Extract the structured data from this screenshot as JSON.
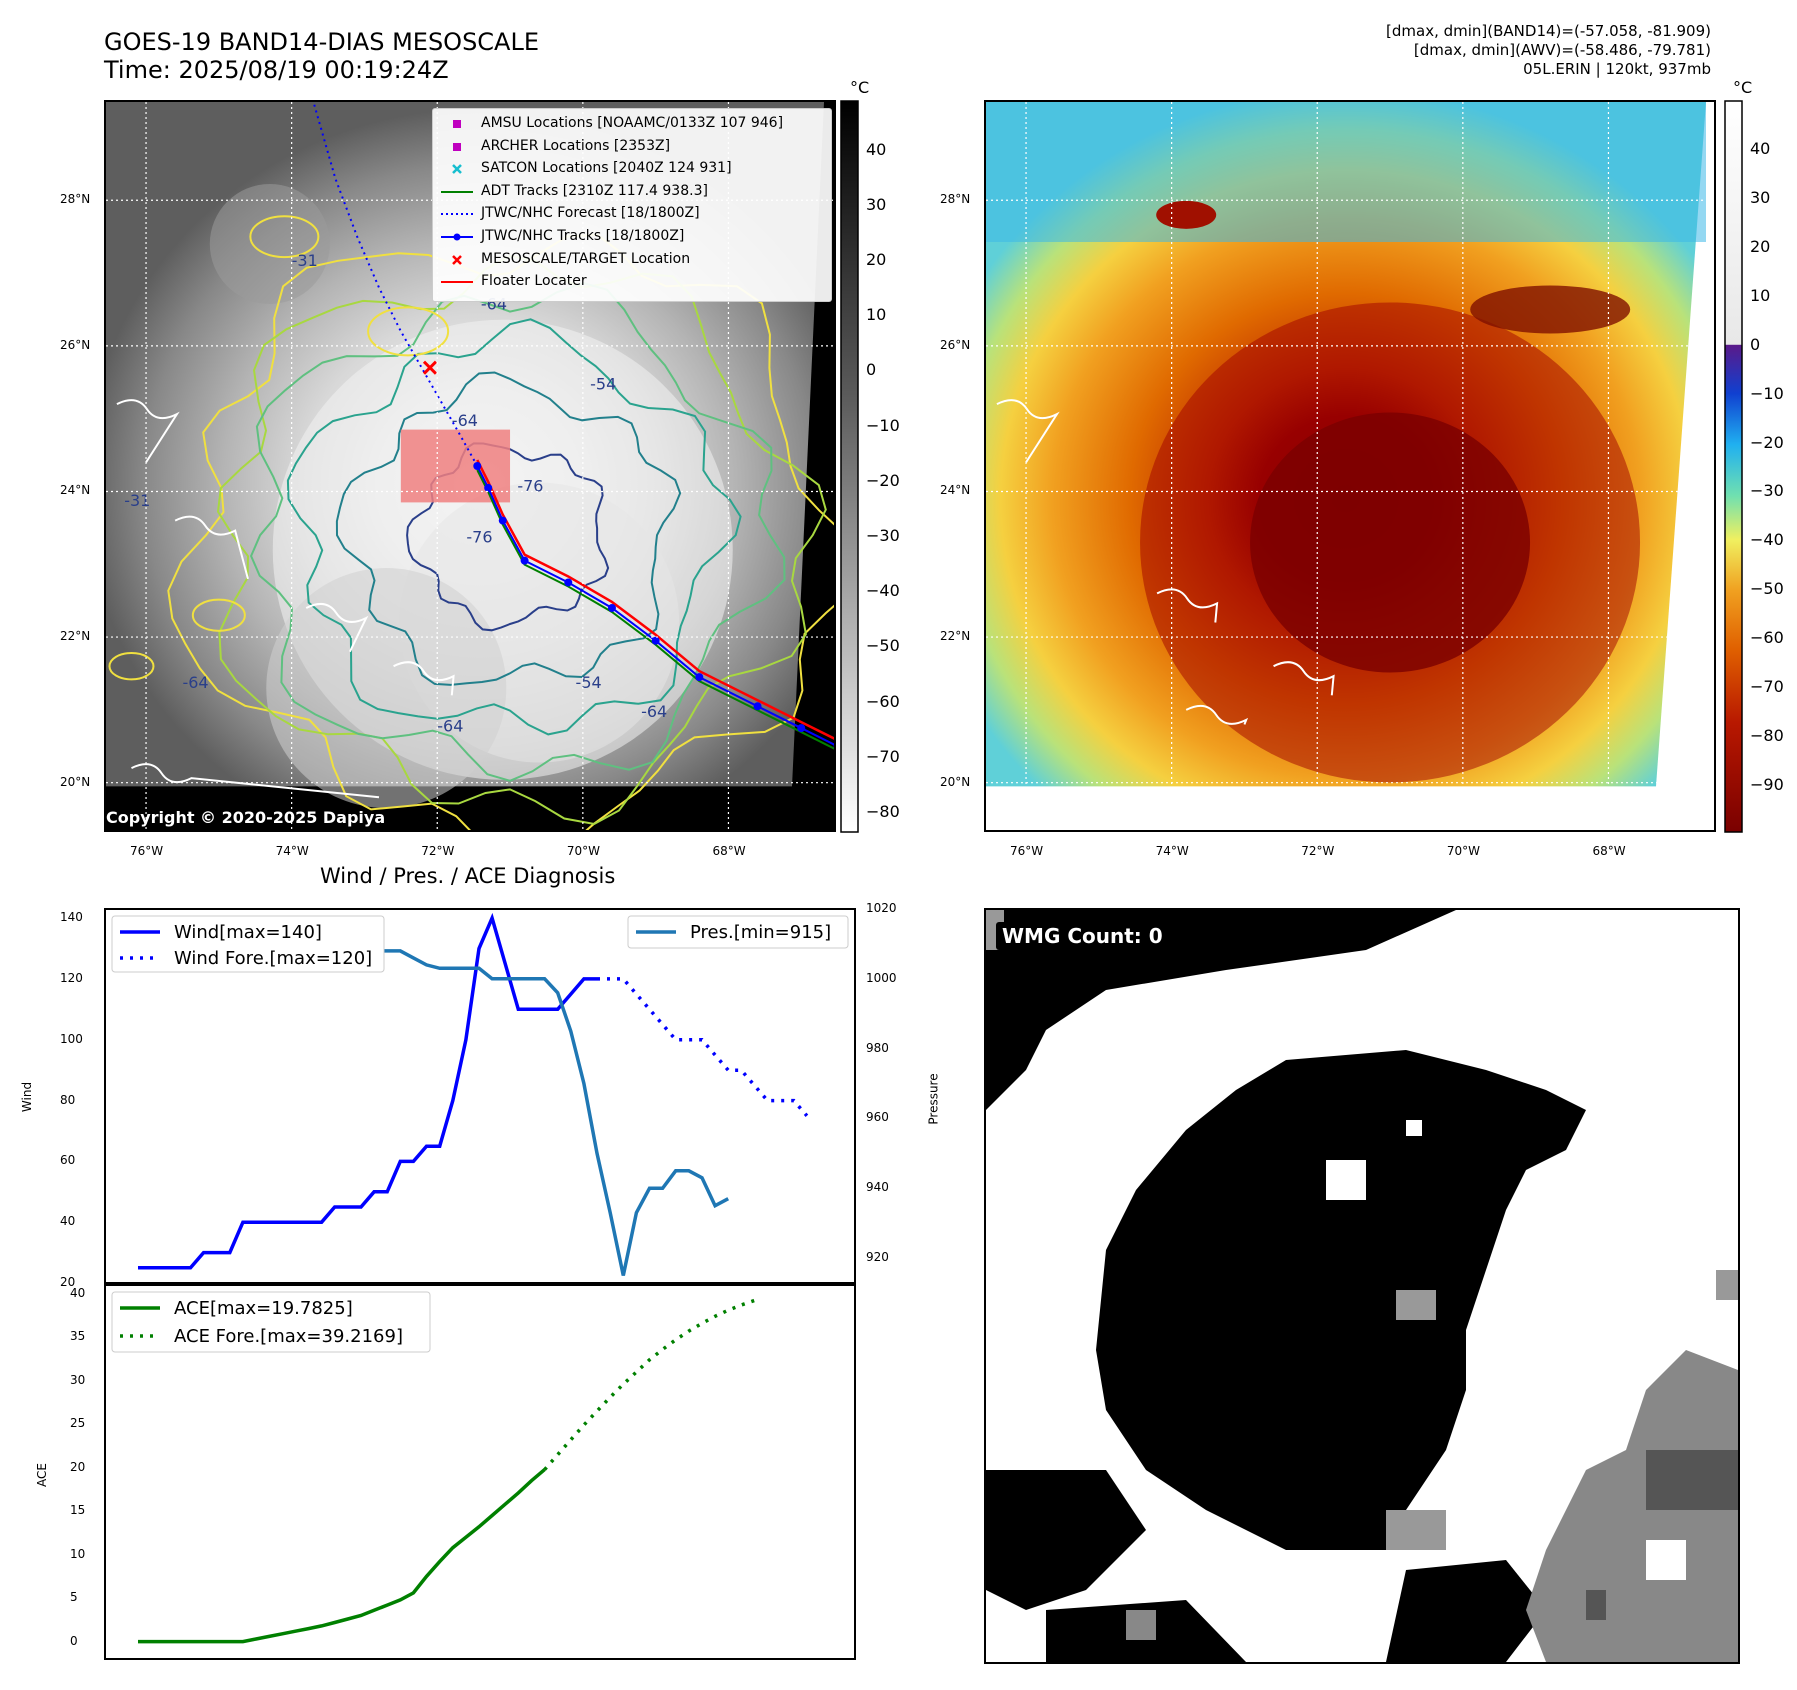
{
  "header": {
    "title_line1": "GOES-19 BAND14-DIAS MESOSCALE",
    "title_line2": "Time: 2025/08/19 00:19:24Z",
    "info_line1": "[dmax, dmin](BAND14)=(-57.058, -81.909)",
    "info_line2": "[dmax, dmin](AWV)=(-58.486, -79.781)",
    "info_line3": "05L.ERIN | 120kt, 937mb"
  },
  "map": {
    "lat_labels": [
      "28°N",
      "26°N",
      "24°N",
      "22°N",
      "20°N"
    ],
    "lat_values": [
      28,
      26,
      24,
      22,
      20
    ],
    "lon_labels": [
      "76°W",
      "74°W",
      "72°W",
      "70°W",
      "68°W"
    ],
    "lon_values": [
      -76,
      -74,
      -72,
      -70,
      -68
    ],
    "lon_range": [
      -76.55,
      -66.55
    ],
    "lat_range": [
      19.35,
      29.35
    ],
    "copyright": "Copyright © 2020-2025 Dapiya",
    "contour_labels": [
      "-64",
      "-76",
      "-76",
      "-64",
      "-64",
      "-54",
      "-64",
      "-54",
      "-64",
      "-31",
      "-31"
    ],
    "legend": [
      {
        "label": "AMSU Locations [NOAAMC/0133Z 107 946]",
        "symbol": "square",
        "color": "#bf00bf"
      },
      {
        "label": "ARCHER Locations [2353Z]",
        "symbol": "square",
        "color": "#bf00bf"
      },
      {
        "label": "SATCON Locations [2040Z 124 931]",
        "symbol": "x",
        "color": "#17becf"
      },
      {
        "label": "ADT Tracks [2310Z 117.4 938.3]",
        "symbol": "line",
        "color": "#008000"
      },
      {
        "label": "JTWC/NHC Forecast [18/1800Z]",
        "symbol": "dotted",
        "color": "#0000ff"
      },
      {
        "label": "JTWC/NHC Tracks [18/1800Z]",
        "symbol": "line-dot",
        "color": "#0000ff"
      },
      {
        "label": "MESOSCALE/TARGET Location",
        "symbol": "x",
        "color": "#ff0000"
      },
      {
        "label": "Floater Locater",
        "symbol": "line",
        "color": "#ff0000"
      }
    ],
    "track_points": [
      [
        -66.5,
        20.5
      ],
      [
        -67.0,
        20.75
      ],
      [
        -67.6,
        21.05
      ],
      [
        -68.4,
        21.45
      ],
      [
        -69.0,
        21.95
      ],
      [
        -69.6,
        22.4
      ],
      [
        -70.2,
        22.75
      ],
      [
        -70.8,
        23.05
      ],
      [
        -71.1,
        23.6
      ],
      [
        -71.3,
        24.05
      ],
      [
        -71.45,
        24.35
      ]
    ],
    "forecast_points": [
      [
        -71.45,
        24.35
      ],
      [
        -71.7,
        24.8
      ],
      [
        -72.1,
        25.5
      ],
      [
        -72.5,
        26.2
      ],
      [
        -72.8,
        26.8
      ],
      [
        -73.1,
        27.5
      ],
      [
        -73.4,
        28.3
      ],
      [
        -73.7,
        29.35
      ]
    ],
    "target_location": [
      -72.1,
      25.7
    ],
    "floater_box": {
      "lon": [
        -72.5,
        -71.0
      ],
      "lat": [
        23.85,
        24.85
      ]
    }
  },
  "colorbar_left": {
    "unit": "°C",
    "ticks": [
      "40",
      "30",
      "20",
      "10",
      "0",
      "−10",
      "−20",
      "−30",
      "−40",
      "−50",
      "−60",
      "−70",
      "−80"
    ],
    "tick_values": [
      40,
      30,
      20,
      10,
      0,
      -10,
      -20,
      -30,
      -40,
      -50,
      -60,
      -70,
      -80
    ],
    "range": [
      -84,
      49
    ]
  },
  "colorbar_right": {
    "unit": "°C",
    "ticks": [
      "40",
      "30",
      "20",
      "10",
      "0",
      "−10",
      "−20",
      "−30",
      "−40",
      "−50",
      "−60",
      "−70",
      "−80",
      "−90"
    ],
    "tick_values": [
      40,
      30,
      20,
      10,
      0,
      -10,
      -20,
      -30,
      -40,
      -50,
      -60,
      -70,
      -80,
      -90
    ],
    "range": [
      -100,
      50
    ]
  },
  "wmg": {
    "label": "WMG Count: 0"
  },
  "chart_title": "Wind / Pres. / ACE Diagnosis",
  "chart_data": [
    {
      "type": "line",
      "title": "Wind / Pres. / ACE Diagnosis",
      "ylabel": "Wind",
      "y2label": "Pressure",
      "ylim": [
        20,
        143
      ],
      "y2lim": [
        915,
        1020
      ],
      "yticks": [
        20,
        40,
        60,
        80,
        100,
        120,
        140
      ],
      "y2ticks": [
        920,
        940,
        960,
        980,
        1000,
        1020
      ],
      "series": [
        {
          "name": "Wind[max=140]",
          "color": "#0000ff",
          "style": "solid",
          "values": [
            25,
            25,
            25,
            25,
            25,
            30,
            30,
            30,
            40,
            40,
            40,
            40,
            40,
            40,
            40,
            45,
            45,
            45,
            50,
            50,
            60,
            60,
            65,
            65,
            80,
            100,
            130,
            140,
            125,
            110,
            110,
            110,
            110,
            115,
            120,
            120
          ]
        },
        {
          "name": "Wind Fore.[max=120]",
          "color": "#0000ff",
          "style": "dotted",
          "x_start": 35,
          "values": [
            120,
            120,
            120,
            115,
            110,
            105,
            100,
            100,
            100,
            95,
            90,
            90,
            85,
            80,
            80,
            80,
            75
          ]
        },
        {
          "name": "Pres.[min=915]",
          "color": "#1f77b4",
          "style": "solid",
          "axis": "right",
          "values": [
            1015,
            1015,
            1012,
            1011,
            1010,
            1010,
            1010,
            1010,
            1010,
            1010,
            1009,
            1010,
            1010,
            1009,
            1009,
            1009,
            1009,
            1008,
            1008,
            1008,
            1008,
            1006,
            1004,
            1003,
            1003,
            1003,
            1003,
            1000,
            1000,
            1000,
            1000,
            1000,
            996,
            985,
            970,
            950,
            933,
            915,
            933,
            940,
            940,
            945,
            945,
            943,
            935,
            937
          ]
        }
      ]
    },
    {
      "type": "line",
      "ylabel": "ACE",
      "ylim": [
        -2,
        41
      ],
      "yticks": [
        0,
        5,
        10,
        15,
        20,
        25,
        30,
        35,
        40
      ],
      "series": [
        {
          "name": "ACE[max=19.7825]",
          "color": "#008000",
          "style": "solid",
          "values": [
            0,
            0,
            0,
            0,
            0,
            0,
            0,
            0,
            0,
            0.3,
            0.6,
            0.9,
            1.2,
            1.5,
            1.8,
            2.2,
            2.6,
            3.0,
            3.6,
            4.2,
            4.8,
            5.6,
            7.5,
            9.2,
            10.8,
            12.0,
            13.2,
            14.5,
            15.8,
            17.1,
            18.5,
            19.78
          ]
        },
        {
          "name": "ACE Fore.[max=39.2169]",
          "color": "#008000",
          "style": "dotted",
          "x_start": 31,
          "values": [
            19.78,
            21.5,
            23.2,
            24.9,
            26.5,
            28.1,
            29.6,
            31.0,
            32.4,
            33.6,
            34.7,
            35.7,
            36.6,
            37.4,
            38.1,
            38.7,
            39.2169
          ]
        }
      ]
    }
  ]
}
